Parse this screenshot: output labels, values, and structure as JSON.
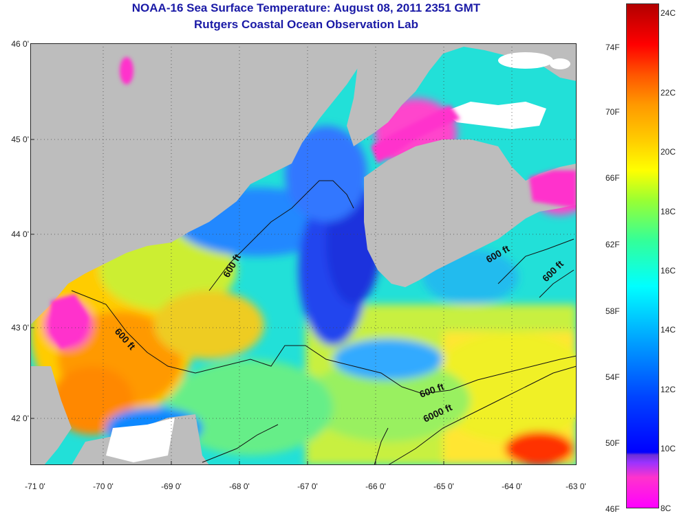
{
  "header": {
    "title_line1": "NOAA-16 Sea Surface Temperature:  August 08, 2011 2351 GMT",
    "title_line2": "Rutgers Coastal Ocean Observation Lab"
  },
  "map": {
    "lat_ticks": [
      "46 0'",
      "45 0'",
      "44 0'",
      "43 0'",
      "42 0'"
    ],
    "lon_ticks": [
      "-71 0'",
      "-70 0'",
      "-69 0'",
      "-68 0'",
      "-67 0'",
      "-66 0'",
      "-65 0'",
      "-64 0'",
      "-63 0'"
    ],
    "contour_labels": [
      "600 ft",
      "600 ft",
      "600 ft",
      "600 ft",
      "600 ft",
      "6000 ft"
    ],
    "colors": {
      "land": "#bdbdbd",
      "cloud": "#ffffff",
      "warm": "#ff9900",
      "cool": "#0000ff",
      "mid": "#00d0e0"
    }
  },
  "colorbar": {
    "fahrenheit_labels": [
      "74F",
      "70F",
      "66F",
      "62F",
      "58F",
      "54F",
      "50F",
      "46F"
    ],
    "celsius_labels": [
      "24C",
      "22C",
      "20C",
      "18C",
      "16C",
      "14C",
      "12C",
      "10C",
      "8C"
    ]
  }
}
